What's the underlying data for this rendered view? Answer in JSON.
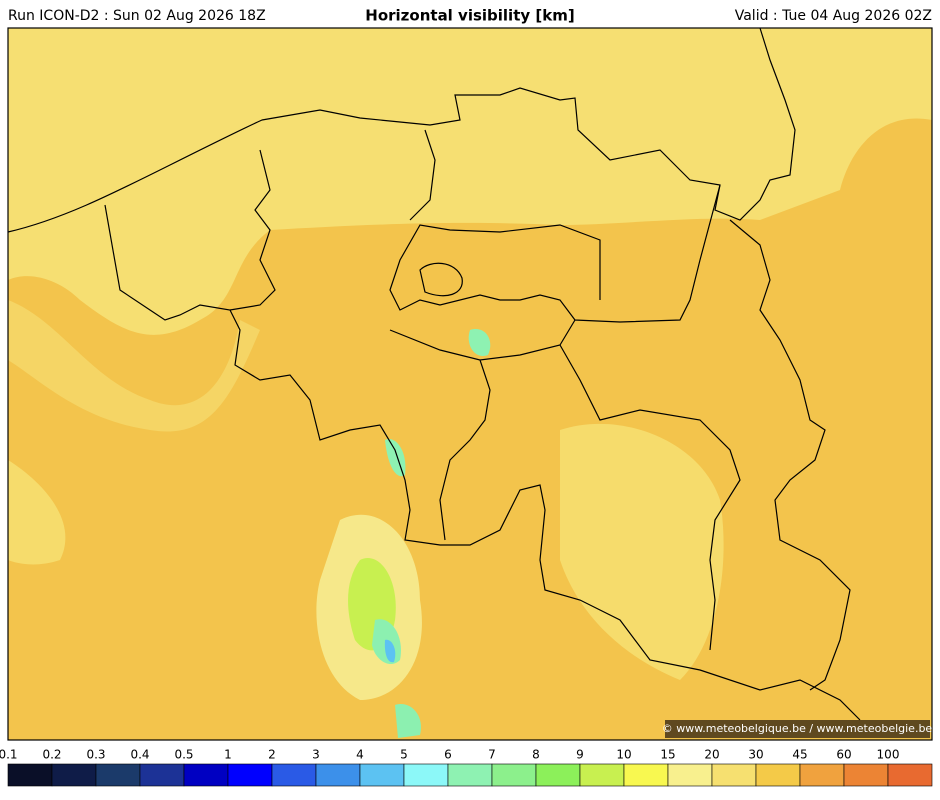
{
  "header": {
    "run": "Run ICON-D2 : Sun 02 Aug 2026 18Z",
    "title": "Horizontal visibility [km]",
    "valid": "Valid : Tue 04 Aug 2026 02Z"
  },
  "credit": "© www.meteobelgique.be / www.meteobelgie.be",
  "colorbar": {
    "labels": [
      0.1,
      0.2,
      0.3,
      0.4,
      0.5,
      1,
      2,
      3,
      4,
      5,
      6,
      7,
      8,
      9,
      10,
      15,
      20,
      30,
      45,
      60,
      100
    ],
    "colors": [
      "#0a0f28",
      "#0f1c48",
      "#1b3a6a",
      "#1c3296",
      "#0000c2",
      "#0000ff",
      "#2a5ae6",
      "#3c90ea",
      "#5cc2f2",
      "#8cf8f8",
      "#8ef2b2",
      "#8cf08c",
      "#8cf05a",
      "#c8f050",
      "#f8f850",
      "#f8f08e",
      "#f6e070",
      "#f4ca48",
      "#f0a23e",
      "#ec8434",
      "#e86a30"
    ]
  }
}
